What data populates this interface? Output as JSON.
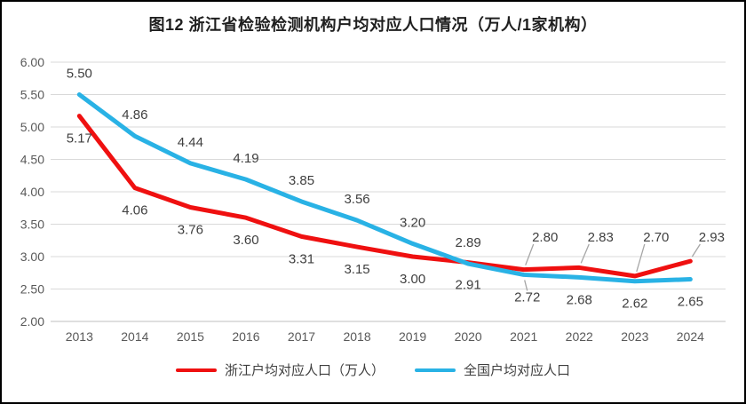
{
  "chart_data": {
    "type": "line",
    "title": "图12 浙江省检验检测机构户均对应人口情况（万人/1家机构）",
    "categories": [
      "2013",
      "2014",
      "2015",
      "2016",
      "2017",
      "2018",
      "2019",
      "2020",
      "2021",
      "2022",
      "2023",
      "2024"
    ],
    "ylim": [
      2.0,
      6.0
    ],
    "ytick_step": 0.5,
    "grid": "horizontal",
    "legend_position": "bottom",
    "colors": {
      "grid": "#d9d9d9",
      "axis_line": "#bfbfbf",
      "axis_label": "#595959",
      "data_label": "#3f3f3f",
      "leader": "#a6a6a6",
      "title": "#1f1f1f",
      "border": "#000000"
    },
    "series": [
      {
        "name": "浙江户均对应人口（万人）",
        "color": "#ef1010",
        "values": [
          5.17,
          4.06,
          3.76,
          3.6,
          3.31,
          3.15,
          3.0,
          2.91,
          2.8,
          2.83,
          2.7,
          2.93
        ],
        "label_placements": [
          "below",
          "below",
          "below",
          "below",
          "below",
          "below",
          "below",
          "below",
          "leader",
          "leader",
          "leader",
          "leader"
        ]
      },
      {
        "name": "全国户均对应人口",
        "color": "#29b2e5",
        "values": [
          5.5,
          4.86,
          4.44,
          4.19,
          3.85,
          3.56,
          3.2,
          2.89,
          2.72,
          2.68,
          2.62,
          2.65
        ],
        "label_placements": [
          "above",
          "above",
          "above",
          "above",
          "above",
          "above",
          "above",
          "above",
          "leader-below",
          "below",
          "below",
          "below"
        ]
      }
    ]
  }
}
